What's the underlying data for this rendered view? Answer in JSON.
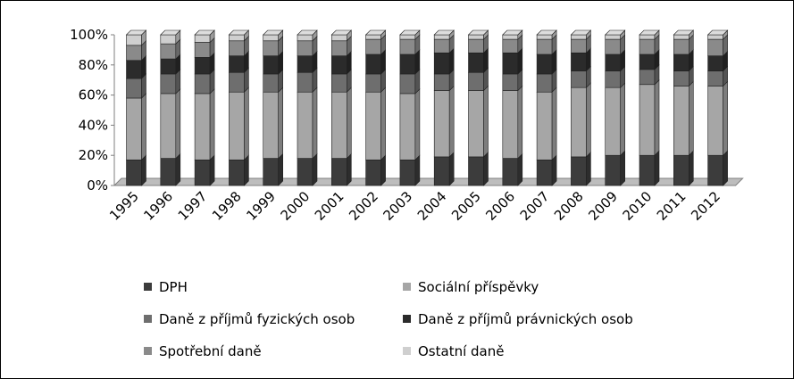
{
  "chart_data": {
    "type": "bar",
    "stacked": true,
    "percent_stacked": true,
    "three_d": true,
    "categories": [
      "1995",
      "1996",
      "1997",
      "1998",
      "1999",
      "2000",
      "2001",
      "2002",
      "2003",
      "2004",
      "2005",
      "2006",
      "2007",
      "2008",
      "2009",
      "2010",
      "2011",
      "2012"
    ],
    "yticks": [
      "0%",
      "20%",
      "40%",
      "60%",
      "80%",
      "100%"
    ],
    "ylim": [
      0,
      100
    ],
    "grid": false,
    "legend_position": "bottom",
    "series": [
      {
        "name": "DPH",
        "color": "#3c3c3c",
        "values": [
          17,
          18,
          17,
          17,
          18,
          18,
          18,
          17,
          17,
          19,
          19,
          18,
          17,
          19,
          20,
          20,
          20,
          20
        ]
      },
      {
        "name": "Sociální příspěvky",
        "color": "#a6a6a6",
        "values": [
          41,
          43,
          44,
          45,
          44,
          44,
          44,
          45,
          44,
          44,
          44,
          45,
          45,
          46,
          45,
          47,
          46,
          46
        ]
      },
      {
        "name": "Daně z příjmů fyzických osob",
        "color": "#6e6e6e",
        "values": [
          13,
          13,
          13,
          13,
          12,
          13,
          12,
          12,
          13,
          11,
          12,
          11,
          12,
          11,
          11,
          10,
          10,
          10
        ]
      },
      {
        "name": "Daně z příjmů právnických osob",
        "color": "#2b2b2b",
        "values": [
          12,
          10,
          11,
          11,
          12,
          11,
          12,
          13,
          13,
          14,
          13,
          14,
          13,
          12,
          11,
          10,
          11,
          10
        ]
      },
      {
        "name": "Spotřební daně",
        "color": "#8a8a8a",
        "values": [
          10,
          10,
          10,
          10,
          10,
          10,
          10,
          10,
          10,
          9,
          9,
          9,
          10,
          9,
          10,
          10,
          10,
          11
        ]
      },
      {
        "name": "Ostatní daně",
        "color": "#cfcfcf",
        "values": [
          7,
          6,
          5,
          4,
          4,
          4,
          4,
          3,
          3,
          3,
          3,
          3,
          3,
          3,
          3,
          3,
          3,
          3
        ]
      }
    ]
  }
}
